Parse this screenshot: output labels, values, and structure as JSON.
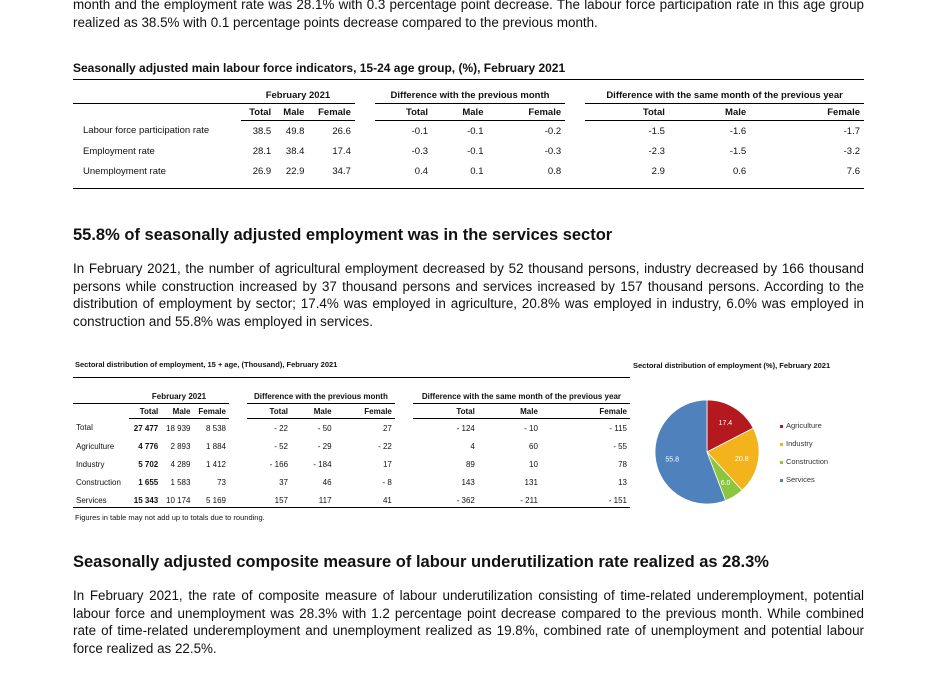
{
  "intro_para": "month and the employment rate was 28.1% with 0.3 percentage point decrease. The labour force participation rate in this age group realized as 38.5% with 0.1 percentage points decrease compared to the previous month.",
  "table1": {
    "caption": "Seasonally adjusted main labour force indicators, 15-24 age group, (%), February 2021",
    "groups": [
      "February 2021",
      "Difference with the previous month",
      "Difference with the same month of the previous year"
    ],
    "subheaders": [
      "Total",
      "Male",
      "Female",
      "Total",
      "Male",
      "Female",
      "Total",
      "Male",
      "Female"
    ],
    "rows": [
      {
        "label": "Labour force participation rate",
        "values": [
          "38.5",
          "49.8",
          "26.6",
          "-0.1",
          "-0.1",
          "-0.2",
          "-1.5",
          "-1.6",
          "-1.7"
        ]
      },
      {
        "label": "Employment rate",
        "values": [
          "28.1",
          "38.4",
          "17.4",
          "-0.3",
          "-0.1",
          "-0.3",
          "-2.3",
          "-1.5",
          "-3.2"
        ]
      },
      {
        "label": "Unemployment rate",
        "values": [
          "26.9",
          "22.9",
          "34.7",
          "0.4",
          "0.1",
          "0.8",
          "2.9",
          "0.6",
          "7.6"
        ]
      }
    ]
  },
  "section1": {
    "heading": "55.8% of seasonally adjusted employment was in the services sector",
    "para": "In February 2021, the number of agricultural employment decreased by 52 thousand persons, industry decreased by 166 thousand persons while construction increased by 37 thousand persons and services increased by 157 thousand persons. According to the distribution of employment by sector; 17.4% was employed in agriculture, 20.8% was employed in industry, 6.0% was employed in construction and 55.8% was employed in services."
  },
  "table2": {
    "caption": "Sectoral distribution of employment, 15 + age, (Thousand), February 2021",
    "groups": [
      "February 2021",
      "Difference with the previous month",
      "Difference with the same month of the previous year"
    ],
    "subheaders": [
      "Total",
      "Male",
      "Female",
      "Total",
      "Male",
      "Female",
      "Total",
      "Male",
      "Female"
    ],
    "rows": [
      {
        "label": "Total",
        "values": [
          "27 477",
          "18 939",
          "8 538",
          "- 22",
          "- 50",
          "27",
          "- 124",
          "- 10",
          "- 115"
        ]
      },
      {
        "label": "Agriculture",
        "values": [
          "4 776",
          "2 893",
          "1 884",
          "- 52",
          "- 29",
          "- 22",
          "4",
          "60",
          "- 55"
        ]
      },
      {
        "label": "Industry",
        "values": [
          "5 702",
          "4 289",
          "1 412",
          "- 166",
          "- 184",
          "17",
          "89",
          "10",
          "78"
        ]
      },
      {
        "label": "Construction",
        "values": [
          "1 655",
          "1 583",
          "73",
          "37",
          "46",
          "- 8",
          "143",
          "131",
          "13"
        ]
      },
      {
        "label": "Services",
        "values": [
          "15 343",
          "10 174",
          "5 169",
          "157",
          "117",
          "41",
          "- 362",
          "- 211",
          "- 151"
        ]
      }
    ],
    "note": "Figures in table may not add up to totals due to rounding."
  },
  "chart_data": {
    "type": "pie",
    "title": "Sectoral distribution of employment (%), February 2021",
    "categories": [
      "Agriculture",
      "Industry",
      "Construction",
      "Services"
    ],
    "values": [
      17.4,
      20.8,
      6.0,
      55.8
    ],
    "colors": [
      "#b3191e",
      "#f2b31c",
      "#8cc63f",
      "#4f81bd"
    ],
    "legend_position": "right"
  },
  "section2": {
    "heading": "Seasonally adjusted composite measure of labour underutilization rate realized as 28.3%",
    "para": "In February 2021, the rate of composite measure of labour underutilization consisting of time-related underemployment, potential labour force and unemployment was 28.3% with 1.2 percentage point decrease compared to the previous month. While combined rate of time-related underemployment and unemployment realized as 19.8%, combined rate of unemployment and potential labour force realized as 22.5%."
  }
}
